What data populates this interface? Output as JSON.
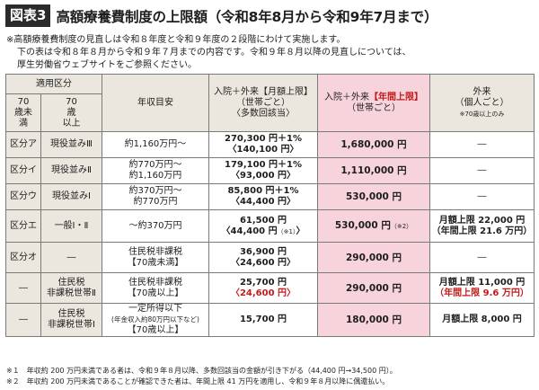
{
  "title": {
    "badge": "図表3",
    "text": "高額療養費制度の上限額（令和8年8月から令和9年7月まで）"
  },
  "intro": {
    "line1": "※高額療養費制度の見直しは令和８年度と令和９年度の２段階にわけて実施します。",
    "line2": "下の表は令和８年８月から令和９年７月までの内容です。令和９年８月以降の見直しについては、",
    "line3": "厚生労働省ウェブサイトをご参照ください。"
  },
  "table": {
    "header": {
      "group": "適用区分",
      "under70": "70\n歳未\n満",
      "over70": "70\n歳\n以上",
      "income": "年収目安",
      "monthly": {
        "l1": "入院＋外来【月額上限】",
        "l2": "（世帯ごと）",
        "l3": "〈多数回該当〉"
      },
      "annual": {
        "l1a": "入院＋外来",
        "l1b": "【年間上限】",
        "l2": "（世帯ごと）"
      },
      "outpatient": {
        "l1": "外来",
        "l2": "（個人ごと）",
        "l3": "※70歳以上のみ"
      }
    },
    "rows": [
      {
        "under70": "区分ア",
        "over70": "現役並みⅢ",
        "income": "約1,160万円～",
        "monthly_l1": "270,300 円＋1%",
        "monthly_l2": "〈140,100 円〉",
        "annual": "1,680,000 円",
        "outpatient": "―"
      },
      {
        "under70": "区分イ",
        "over70": "現役並みⅡ",
        "income_l1": "約770万円～",
        "income_l2": "約1,160万円",
        "monthly_l1": "179,100 円＋1%",
        "monthly_l2": "〈93,000 円〉",
        "annual": "1,110,000 円",
        "outpatient": "―"
      },
      {
        "under70": "区分ウ",
        "over70": "現役並みⅠ",
        "income_l1": "約370万円～",
        "income_l2": "約770万円",
        "monthly_l1": "85,800 円＋1%",
        "monthly_l2": "〈44,400 円〉",
        "annual": "530,000 円",
        "outpatient": "―"
      },
      {
        "under70": "区分エ",
        "over70": "一般Ⅰ・Ⅱ",
        "income": "～約370万円",
        "monthly_l1": "61,500 円",
        "monthly_l2": "〈44,400 円",
        "monthly_l2_note": "（※1）",
        "monthly_l2_end": "〉",
        "annual": "530,000 円",
        "annual_note": "（※2）",
        "outpatient_l1": "月額上限 22,000 円",
        "outpatient_l2": "（年間上限 21.6 万円）"
      },
      {
        "under70": "区分オ",
        "over70": "―",
        "income_l1": "住民税非課税",
        "income_l2": "【70歳未満】",
        "monthly_l1": "36,900 円",
        "monthly_l2": "〈24,600 円〉",
        "annual": "290,000 円",
        "outpatient": "―"
      },
      {
        "under70": "―",
        "over70_l1": "住民税",
        "over70_l2": "非課税世帯Ⅱ",
        "income_l1": "住民税非課税",
        "income_l2": "【70歳以上】",
        "monthly_l1": "25,700 円",
        "monthly_l2": "〈24,600 円〉",
        "annual": "290,000 円",
        "outpatient_l1": "月額上限 11,000 円",
        "outpatient_l2": "（年間上限 9.6 万円）"
      },
      {
        "under70": "―",
        "over70_l1": "住民税",
        "over70_l2": "非課税世帯Ⅰ",
        "income_l1": "一定所得以下",
        "income_l2": "(年金収入約80万円以下など)",
        "income_l3": "【70歳以上】",
        "monthly": "15,700 円",
        "annual": "180,000 円",
        "outpatient": "月額上限 8,000 円"
      }
    ]
  },
  "notes": {
    "n1": "※１　年収約 200 万円未満である者は、令和９年８月以降、多数回該当の金額が引き下がる（44,400 円→34,500 円）。",
    "n2": "※２　年収約 200 万円未満であることが確認できた者は、年間上限 41 万円を適用し、令和９年８月以降に偶還払い。"
  },
  "colors": {
    "pink_column": "#f7d3dc",
    "header_beige": "#ebe7df",
    "accent_red": "#c41a1a",
    "badge_dark": "#2b2b2b"
  }
}
